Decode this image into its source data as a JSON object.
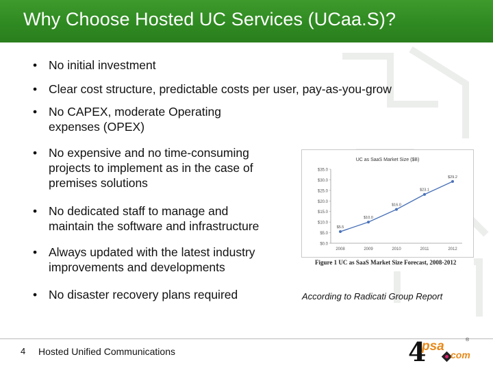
{
  "title": "Why Choose Hosted UC Services (UCaa.S)?",
  "bullets": [
    {
      "lines": [
        "No initial investment"
      ]
    },
    {
      "lines": [
        "Clear cost structure, predictable costs per user, pay-as-you-grow"
      ]
    },
    {
      "lines": [
        "No CAPEX, moderate Operating",
        "expenses (OPEX)"
      ]
    },
    {
      "lines": [
        "No expensive and no time-consuming",
        "projects to implement as in the case of",
        "premises solutions"
      ]
    },
    {
      "lines": [
        "No dedicated staff to manage and",
        "maintain the software and infrastructure"
      ]
    },
    {
      "lines": [
        "Always updated with the latest industry",
        "improvements and developments"
      ]
    },
    {
      "lines": [
        "No disaster recovery plans required"
      ]
    }
  ],
  "bullet_symbol": "•",
  "chart_data": {
    "type": "line",
    "title": "UC as SaaS Market Size ($B)",
    "categories": [
      "2008",
      "2009",
      "2010",
      "2011",
      "2012"
    ],
    "values": [
      5.5,
      10.0,
      16.0,
      23.1,
      29.2
    ],
    "data_labels": [
      "$5.5",
      "$10.0",
      "$16.0",
      "$23.1",
      "$29.2"
    ],
    "y_ticks": [
      "$35.0",
      "$30.0",
      "$25.0",
      "$20.0",
      "$15.0",
      "$10.0",
      "$5.0",
      "$0.0"
    ],
    "ylim": [
      0,
      35
    ],
    "grid": false,
    "line_color": "#4a72b8",
    "caption": "Figure 1    UC as SaaS Market Size Forecast, 2008-2012"
  },
  "report_note": "According to Radicati Group Report",
  "footer": {
    "page_number": "4",
    "text": "Hosted Unified Communications"
  },
  "logo": {
    "four": "4",
    "psa": "psa",
    "com": "com",
    "reg": "®"
  },
  "colors": {
    "title_bar": "#2f8a22",
    "logo_orange": "#e8891a"
  }
}
